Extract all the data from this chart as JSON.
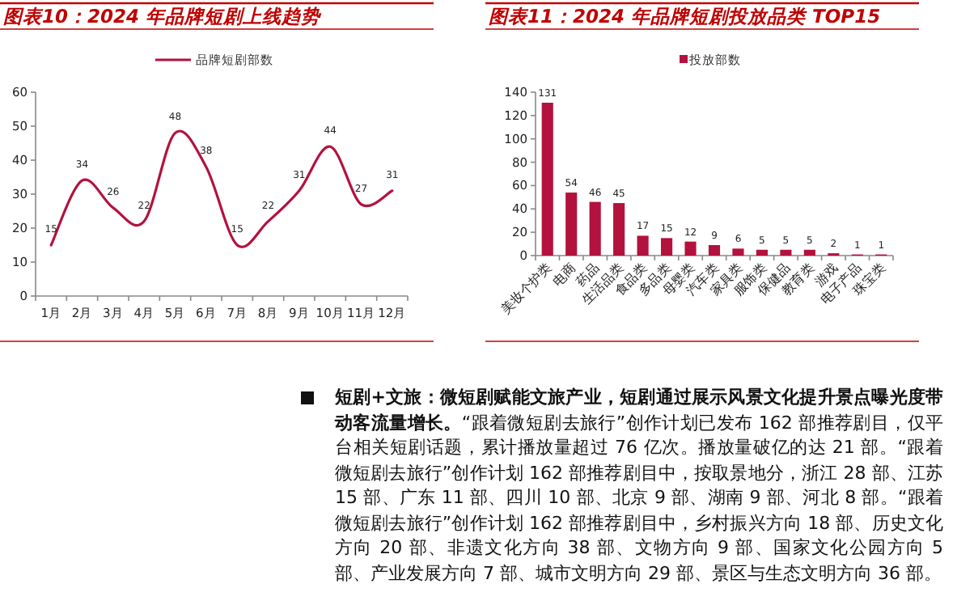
{
  "chart_data": [
    {
      "type": "line",
      "title": "图表10：2024 年品牌短剧上线趋势",
      "categories": [
        "1月",
        "2月",
        "3月",
        "4月",
        "5月",
        "6月",
        "7月",
        "8月",
        "9月",
        "10月",
        "11月",
        "12月"
      ],
      "series": [
        {
          "name": "品牌短剧部数",
          "color": "#b3123e",
          "values": [
            15,
            34,
            26,
            22,
            48,
            38,
            15,
            22,
            31,
            44,
            27,
            31
          ]
        }
      ],
      "ylim": [
        0,
        60
      ],
      "yticks": [
        0,
        10,
        20,
        30,
        40,
        50,
        60
      ],
      "data_labels": true,
      "legend": "top",
      "grid": false
    },
    {
      "type": "bar",
      "title": "图表11：2024 年品牌短剧投放品类 TOP15",
      "categories": [
        "美妆个护类",
        "电商",
        "药品",
        "生活品类",
        "食品类",
        "多品类",
        "母婴类",
        "汽车类",
        "家具类",
        "服饰类",
        "保健品",
        "教育类",
        "游戏",
        "电子产品",
        "珠宝类"
      ],
      "series": [
        {
          "name": "投放部数",
          "color": "#b3123e",
          "values": [
            131,
            54,
            46,
            45,
            17,
            15,
            12,
            9,
            6,
            5,
            5,
            5,
            2,
            1,
            1
          ]
        }
      ],
      "ylim": [
        0,
        140
      ],
      "yticks": [
        0,
        20,
        40,
        60,
        80,
        100,
        120,
        140
      ],
      "data_labels": true,
      "legend": "top",
      "grid": false
    },
    {
      "type": "other",
      "annotations": [
        "短剧+文旅：微短剧赋能文旅产业，短剧通过展示风景文化提升景点曝光度带动客流量增长。",
        "“跟着微短剧去旅行”创作计划已发布 162 部推荐剧目，仅平台相关短剧话题，累计播放量超过 76 亿次。播放量破亿的达 21 部。“跟着微短剧去旅行”创作计划 162 部推荐剧目中，按取景地分，浙江 28 部、江苏 15 部、广东 11 部、四川 10 部、北京 9 部、湖南 9 部、河北 8 部。“跟着微短剧去旅行”创作计划 162 部推荐剧目中，乡村振兴方向 18 部、历史文化方向 20 部、非遗文化方向 38 部、文物方向 9 部、国家文化公园方向 5 部、产业发展方向 7 部、城市文明方向 29 部、景区与生态文明方向 36 部。"
      ]
    }
  ]
}
